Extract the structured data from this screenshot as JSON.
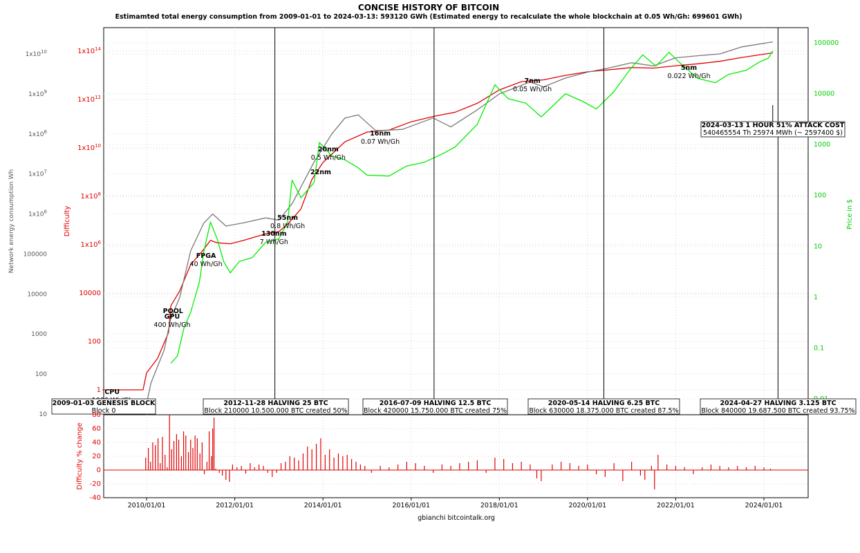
{
  "chart_data": [
    {
      "type": "line",
      "title": "CONCISE HISTORY OF BITCOIN",
      "subtitle": "Estimamted total energy consumption from 2009-01-01 to 2024-03-13: 593120 GWh (Estimated energy to recalculate the whole blockchain at 0.05 Wh/Gh: 699601 GWh)",
      "xlabel": "gbianchi bitcointalk.org",
      "y_left_outer_label": "Network energy consumption Wh",
      "y_left_inner_label": "Difficulty",
      "y_right_label": "Price in $",
      "y_scale": "log",
      "grid": true,
      "legend": "none",
      "x_ticks": [
        "2010/01/01",
        "2012/01/01",
        "2014/01/01",
        "2016/01/01",
        "2018/01/01",
        "2020/01/01",
        "2022/01/01",
        "2024/01/01"
      ],
      "energy_ticks": [
        "10",
        "100",
        "1000",
        "10000",
        "100000",
        "1x10^6",
        "1x10^7",
        "1x10^8",
        "1x10^9",
        "1x10^10"
      ],
      "difficulty_ticks": [
        "1",
        "100",
        "10000",
        "1x10^6",
        "1x10^8",
        "1x10^10",
        "1x10^12",
        "1x10^14"
      ],
      "price_ticks": [
        "0.01",
        "0.1",
        "1",
        "10",
        "100",
        "1000",
        "10000",
        "100000"
      ],
      "series": [
        {
          "color": "#e00000",
          "points": [
            [
              2009.0,
              1
            ],
            [
              2009.92,
              1
            ],
            [
              2010.0,
              5
            ],
            [
              2010.25,
              20
            ],
            [
              2010.5,
              240
            ],
            [
              2010.55,
              3000
            ],
            [
              2010.75,
              12000
            ],
            [
              2011.0,
              150000
            ],
            [
              2011.25,
              500000
            ],
            [
              2011.45,
              1500000
            ],
            [
              2011.6,
              1200000
            ],
            [
              2011.9,
              1100000
            ],
            [
              2012.2,
              1500000
            ],
            [
              2012.7,
              2800000
            ],
            [
              2013.0,
              3500000
            ],
            [
              2013.2,
              7000000
            ],
            [
              2013.5,
              30000000
            ],
            [
              2013.75,
              500000000
            ],
            [
              2014.0,
              2500000000
            ],
            [
              2014.5,
              18000000000
            ],
            [
              2015.0,
              45000000000
            ],
            [
              2015.5,
              55000000000
            ],
            [
              2016.0,
              120000000000
            ],
            [
              2016.5,
              200000000000
            ],
            [
              2017.0,
              300000000000
            ],
            [
              2017.5,
              700000000000
            ],
            [
              2018.0,
              2500000000000
            ],
            [
              2018.5,
              5500000000000
            ],
            [
              2019.0,
              6500000000000
            ],
            [
              2019.5,
              10000000000000
            ],
            [
              2020.0,
              14000000000000
            ],
            [
              2020.5,
              17000000000000
            ],
            [
              2021.0,
              21000000000000
            ],
            [
              2021.5,
              20000000000000
            ],
            [
              2022.0,
              25000000000000
            ],
            [
              2022.5,
              30000000000000
            ],
            [
              2023.0,
              38000000000000
            ],
            [
              2023.5,
              55000000000000
            ],
            [
              2024.0,
              75000000000000
            ],
            [
              2024.2,
              85000000000000
            ]
          ]
        },
        {
          "color": "#777777",
          "points": [
            [
              2009.0,
              10
            ],
            [
              2009.95,
              10
            ],
            [
              2010.1,
              60
            ],
            [
              2010.4,
              400
            ],
            [
              2010.55,
              2500
            ],
            [
              2010.75,
              8000
            ],
            [
              2011.0,
              120000
            ],
            [
              2011.3,
              600000
            ],
            [
              2011.5,
              1000000
            ],
            [
              2011.8,
              500000
            ],
            [
              2012.2,
              600000
            ],
            [
              2012.7,
              800000
            ],
            [
              2013.0,
              700000
            ],
            [
              2013.3,
              1800000
            ],
            [
              2013.8,
              20000000
            ],
            [
              2014.2,
              100000000
            ],
            [
              2014.5,
              250000000
            ],
            [
              2014.8,
              300000000
            ],
            [
              2015.2,
              120000000
            ],
            [
              2015.8,
              130000000
            ],
            [
              2016.5,
              250000000
            ],
            [
              2016.9,
              150000000
            ],
            [
              2017.5,
              400000000
            ],
            [
              2018.0,
              1000000000
            ],
            [
              2018.7,
              2000000000
            ],
            [
              2019.0,
              1500000000
            ],
            [
              2019.5,
              2500000000
            ],
            [
              2020.0,
              3500000000
            ],
            [
              2020.5,
              4500000000
            ],
            [
              2021.0,
              6000000000
            ],
            [
              2021.5,
              5000000000
            ],
            [
              2022.0,
              8000000000
            ],
            [
              2022.5,
              9000000000
            ],
            [
              2023.0,
              10000000000
            ],
            [
              2023.5,
              15000000000
            ],
            [
              2024.2,
              20000000000
            ]
          ]
        },
        {
          "color": "#00ee00",
          "points": [
            [
              2010.55,
              0.05
            ],
            [
              2010.7,
              0.07
            ],
            [
              2010.85,
              0.25
            ],
            [
              2011.0,
              0.5
            ],
            [
              2011.2,
              2
            ],
            [
              2011.3,
              8
            ],
            [
              2011.45,
              30
            ],
            [
              2011.6,
              14
            ],
            [
              2011.75,
              5
            ],
            [
              2011.9,
              3
            ],
            [
              2012.1,
              5
            ],
            [
              2012.4,
              6
            ],
            [
              2012.7,
              12
            ],
            [
              2013.0,
              14
            ],
            [
              2013.2,
              30
            ],
            [
              2013.3,
              200
            ],
            [
              2013.5,
              90
            ],
            [
              2013.8,
              180
            ],
            [
              2013.92,
              1100
            ],
            [
              2014.2,
              600
            ],
            [
              2014.5,
              500
            ],
            [
              2014.8,
              350
            ],
            [
              2015.0,
              250
            ],
            [
              2015.5,
              240
            ],
            [
              2015.9,
              380
            ],
            [
              2016.3,
              450
            ],
            [
              2016.7,
              650
            ],
            [
              2017.0,
              900
            ],
            [
              2017.5,
              2500
            ],
            [
              2017.9,
              15000
            ],
            [
              2018.2,
              8000
            ],
            [
              2018.6,
              6500
            ],
            [
              2018.95,
              3500
            ],
            [
              2019.5,
              10000
            ],
            [
              2019.9,
              7000
            ],
            [
              2020.2,
              5000
            ],
            [
              2020.6,
              11000
            ],
            [
              2020.95,
              29000
            ],
            [
              2021.25,
              58000
            ],
            [
              2021.55,
              35000
            ],
            [
              2021.85,
              65000
            ],
            [
              2022.1,
              40000
            ],
            [
              2022.5,
              20000
            ],
            [
              2022.9,
              16500
            ],
            [
              2023.2,
              24000
            ],
            [
              2023.6,
              29000
            ],
            [
              2023.9,
              42000
            ],
            [
              2024.1,
              50000
            ],
            [
              2024.2,
              70000
            ]
          ]
        }
      ],
      "labels": [
        {
          "bold": "CPU",
          "normal": "1000 Wh/Gh"
        },
        {
          "bold": "POOL",
          "normal": ""
        },
        {
          "bold": "GPU",
          "normal": "400 Wh/Gh"
        },
        {
          "bold": "FPGA",
          "normal": "40 Wh/Gh"
        },
        {
          "bold": "130nm",
          "normal": "7 Wh/Gh"
        },
        {
          "bold": "55nm",
          "normal": "0.8 Wh/Gh"
        },
        {
          "bold": "22nm",
          "normal": ""
        },
        {
          "bold": "20nm",
          "normal": "0.5 Wh/Gh"
        },
        {
          "bold": "16nm",
          "normal": "0.07 Wh/Gh"
        },
        {
          "bold": "7nm",
          "normal": "0.05 Wh/Gh"
        },
        {
          "bold": "5nm",
          "normal": "0.022 Wh/Gh"
        }
      ],
      "attack_box": {
        "title": "2024-03-13 1 HOUR 51% ATTACK COST",
        "text": "540465554 Th 25974 MWh (~ 2597400 $)"
      },
      "events": [
        {
          "title": "2009-01-03 GENESIS BLOCK",
          "text": "Block 0"
        },
        {
          "title": "2012-11-28 HALVING 25 BTC",
          "text": "Block 210000 10.500.000 BTC created 50%"
        },
        {
          "title": "2016-07-09 HALVING 12.5 BTC",
          "text": "Block 420000 15.750.000 BTC created 75%"
        },
        {
          "title": "2020-05-14 HALVING 6.25 BTC",
          "text": "Block 630000 18.375.000 BTC created 87.5%"
        },
        {
          "title": "2024-04-27 HALVING 3.125 BTC",
          "text": "Block 840000 19.687.500 BTC created 93.75%"
        }
      ]
    },
    {
      "type": "bar",
      "ylabel": "Difficulty % change",
      "ylim": [
        -40,
        80
      ],
      "y_ticks": [
        "80",
        "60",
        "40",
        "20",
        "0",
        "-20",
        "-40"
      ],
      "x_ticks": [
        "2010/01/01",
        "2012/01/01",
        "2014/01/01",
        "2016/01/01",
        "2018/01/01",
        "2020/01/01",
        "2022/01/01",
        "2024/01/01"
      ],
      "color": "#e00000",
      "values": [
        [
          2009.98,
          18
        ],
        [
          2010.04,
          32
        ],
        [
          2010.09,
          12
        ],
        [
          2010.14,
          40
        ],
        [
          2010.2,
          36
        ],
        [
          2010.26,
          46
        ],
        [
          2010.31,
          10
        ],
        [
          2010.36,
          48
        ],
        [
          2010.42,
          22
        ],
        [
          2010.47,
          4
        ],
        [
          2010.52,
          80
        ],
        [
          2010.57,
          30
        ],
        [
          2010.62,
          42
        ],
        [
          2010.68,
          52
        ],
        [
          2010.73,
          44
        ],
        [
          2010.79,
          20
        ],
        [
          2010.84,
          56
        ],
        [
          2010.89,
          50
        ],
        [
          2010.95,
          26
        ],
        [
          2011.0,
          44
        ],
        [
          2011.05,
          32
        ],
        [
          2011.1,
          50
        ],
        [
          2011.15,
          46
        ],
        [
          2011.21,
          24
        ],
        [
          2011.26,
          40
        ],
        [
          2011.31,
          -6
        ],
        [
          2011.37,
          12
        ],
        [
          2011.42,
          56
        ],
        [
          2011.47,
          20
        ],
        [
          2011.5,
          60
        ],
        [
          2011.53,
          76
        ],
        [
          2011.57,
          2
        ],
        [
          2011.65,
          -4
        ],
        [
          2011.72,
          -8
        ],
        [
          2011.8,
          -14
        ],
        [
          2011.88,
          -17
        ],
        [
          2011.95,
          8
        ],
        [
          2012.05,
          4
        ],
        [
          2012.15,
          6
        ],
        [
          2012.25,
          -5
        ],
        [
          2012.35,
          10
        ],
        [
          2012.45,
          4
        ],
        [
          2012.55,
          8
        ],
        [
          2012.65,
          6
        ],
        [
          2012.75,
          -4
        ],
        [
          2012.85,
          -10
        ],
        [
          2012.95,
          -4
        ],
        [
          2013.05,
          10
        ],
        [
          2013.15,
          12
        ],
        [
          2013.25,
          20
        ],
        [
          2013.35,
          18
        ],
        [
          2013.45,
          14
        ],
        [
          2013.55,
          24
        ],
        [
          2013.65,
          34
        ],
        [
          2013.75,
          30
        ],
        [
          2013.85,
          38
        ],
        [
          2013.95,
          46
        ],
        [
          2014.05,
          22
        ],
        [
          2014.15,
          30
        ],
        [
          2014.25,
          18
        ],
        [
          2014.35,
          24
        ],
        [
          2014.45,
          20
        ],
        [
          2014.55,
          22
        ],
        [
          2014.65,
          16
        ],
        [
          2014.75,
          12
        ],
        [
          2014.85,
          8
        ],
        [
          2014.95,
          6
        ],
        [
          2015.1,
          -4
        ],
        [
          2015.3,
          6
        ],
        [
          2015.5,
          4
        ],
        [
          2015.7,
          8
        ],
        [
          2015.9,
          12
        ],
        [
          2016.1,
          10
        ],
        [
          2016.3,
          6
        ],
        [
          2016.5,
          -4
        ],
        [
          2016.7,
          8
        ],
        [
          2016.9,
          6
        ],
        [
          2017.1,
          10
        ],
        [
          2017.3,
          12
        ],
        [
          2017.5,
          14
        ],
        [
          2017.7,
          -4
        ],
        [
          2017.9,
          18
        ],
        [
          2018.1,
          16
        ],
        [
          2018.3,
          10
        ],
        [
          2018.5,
          12
        ],
        [
          2018.7,
          8
        ],
        [
          2018.85,
          -12
        ],
        [
          2018.95,
          -16
        ],
        [
          2019.2,
          8
        ],
        [
          2019.4,
          12
        ],
        [
          2019.6,
          10
        ],
        [
          2019.8,
          6
        ],
        [
          2020.0,
          8
        ],
        [
          2020.2,
          -6
        ],
        [
          2020.4,
          -10
        ],
        [
          2020.6,
          10
        ],
        [
          2020.8,
          -16
        ],
        [
          2021.0,
          12
        ],
        [
          2021.2,
          -8
        ],
        [
          2021.3,
          -14
        ],
        [
          2021.45,
          6
        ],
        [
          2021.52,
          -28
        ],
        [
          2021.6,
          22
        ],
        [
          2021.8,
          8
        ],
        [
          2022.0,
          6
        ],
        [
          2022.2,
          4
        ],
        [
          2022.4,
          -6
        ],
        [
          2022.6,
          4
        ],
        [
          2022.8,
          8
        ],
        [
          2023.0,
          6
        ],
        [
          2023.2,
          4
        ],
        [
          2023.4,
          6
        ],
        [
          2023.6,
          4
        ],
        [
          2023.8,
          6
        ],
        [
          2024.0,
          4
        ],
        [
          2024.15,
          2
        ]
      ]
    }
  ]
}
